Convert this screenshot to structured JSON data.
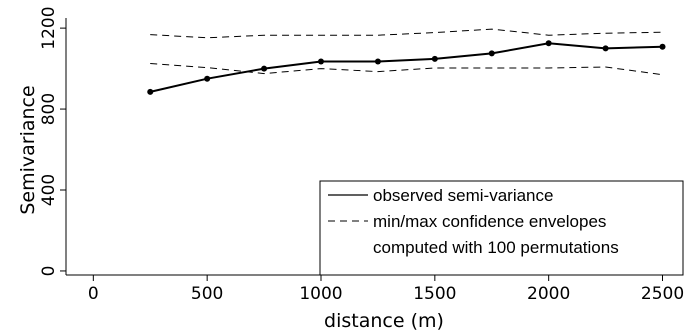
{
  "chart_data": {
    "type": "line",
    "xlabel": "distance (m)",
    "ylabel": "Semivariance",
    "xlim": [
      -120,
      2590
    ],
    "ylim": [
      -20,
      1250
    ],
    "x_ticks": [
      0,
      500,
      1000,
      1500,
      2000,
      2500
    ],
    "y_ticks": [
      0,
      400,
      800,
      1200
    ],
    "grid": false,
    "legend_position": "bottom-right",
    "x": [
      250,
      500,
      750,
      1000,
      1250,
      1500,
      1750,
      2000,
      2250,
      2500
    ],
    "series": [
      {
        "name": "observed semi-variance",
        "style": "solid-with-markers",
        "values": [
          885,
          950,
          1000,
          1035,
          1035,
          1048,
          1075,
          1125,
          1100,
          1108
        ]
      },
      {
        "name": "min/max confidence envelopes",
        "style": "dashed",
        "values": [
          1025,
          1005,
          975,
          1000,
          985,
          1003,
          1003,
          1003,
          1008,
          970
        ]
      },
      {
        "name": "",
        "style": "dashed",
        "values": [
          1168,
          1152,
          1165,
          1165,
          1165,
          1178,
          1195,
          1165,
          1175,
          1180
        ]
      }
    ],
    "legend": [
      {
        "label": "observed semi-variance",
        "style": "solid"
      },
      {
        "label": "min/max confidence envelopes",
        "style": "dashed"
      },
      {
        "label": "computed with 100 permutations",
        "style": "none"
      }
    ],
    "colors": {
      "line": "#000000",
      "background": "#ffffff"
    }
  }
}
